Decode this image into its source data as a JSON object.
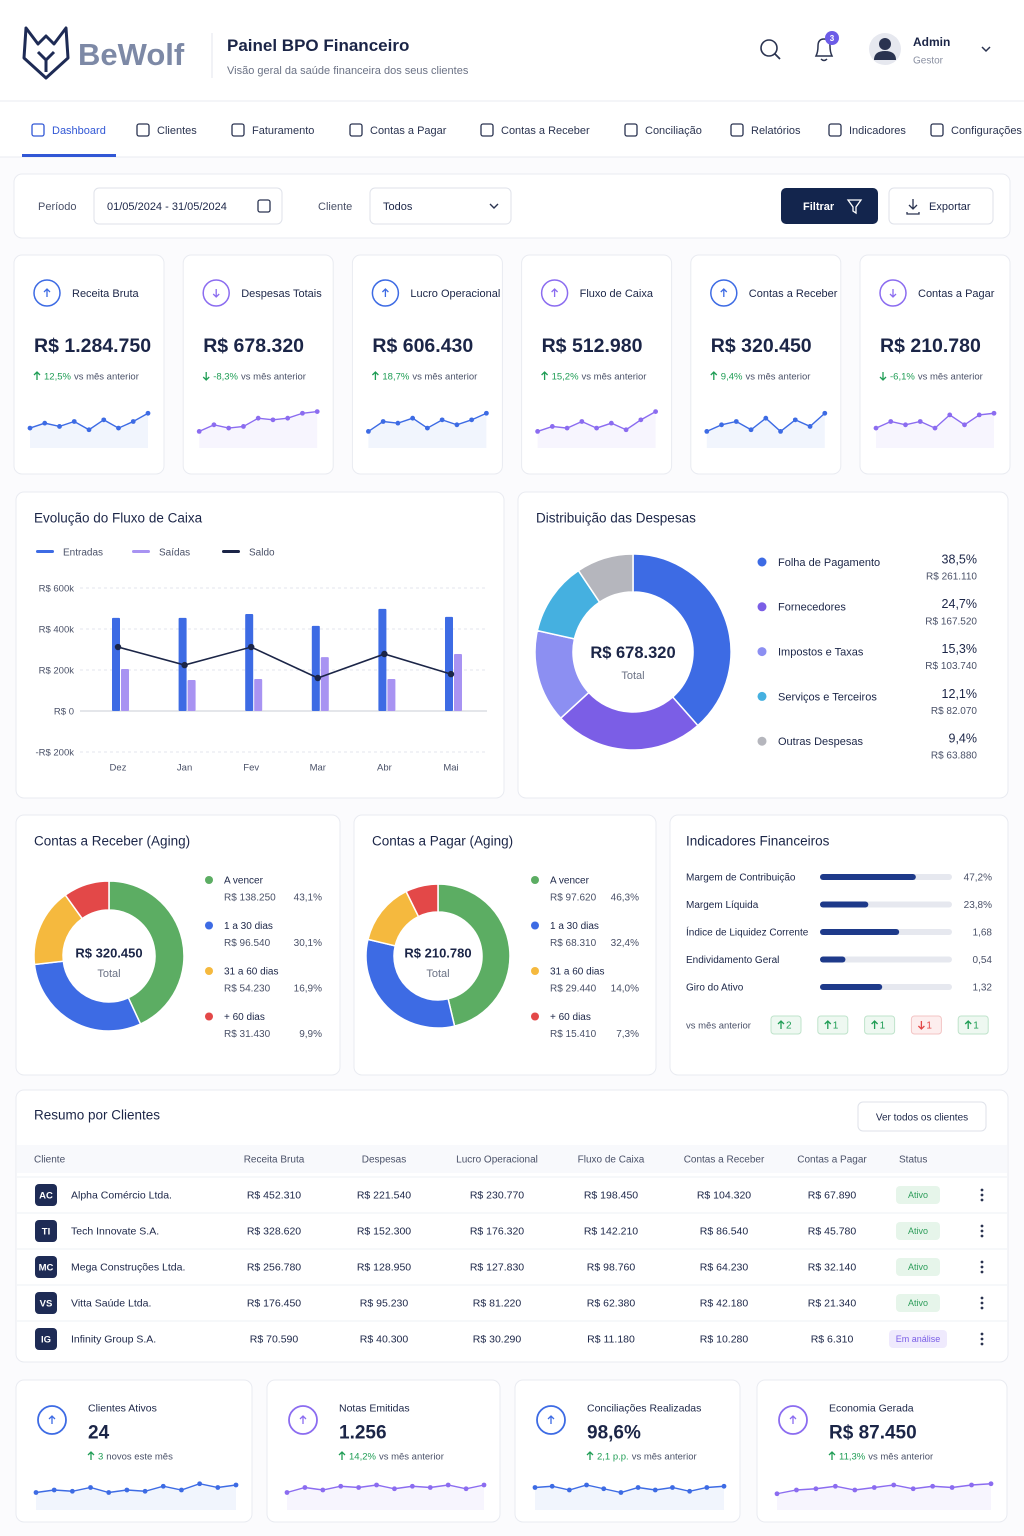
{
  "brand": "BeWolf",
  "header": {
    "title": "Painel BPO Financeiro",
    "subtitle": "Visão geral da saúde financeira dos seus clientes",
    "notifications": "3",
    "user": "Admin",
    "role": "Gestor"
  },
  "nav": [
    "Dashboard",
    "Clientes",
    "Faturamento",
    "Contas a Pagar",
    "Contas a Receber",
    "Conciliação",
    "Relatórios",
    "Indicadores",
    "Configurações"
  ],
  "filters": {
    "period_label": "Período",
    "period": "01/05/2024 - 31/05/2024",
    "client_label": "Cliente",
    "client": "Todos",
    "filter": "Filtrar",
    "export": "Exportar"
  },
  "spark_ylim": [
    0,
    10
  ],
  "kpis": [
    {
      "label": "Receita Bruta",
      "value": "R$ 1.284.750",
      "change": "12,5%",
      "compare": "vs mês anterior",
      "trend": "up",
      "color": "#3d6be4",
      "spark": [
        3,
        4.5,
        3.5,
        5,
        2.5,
        5.5,
        3,
        5,
        7.5
      ]
    },
    {
      "label": "Despesas Totais",
      "value": "R$ 678.320",
      "change": "-8,3%",
      "compare": "vs mês anterior",
      "trend": "down",
      "color": "#8b6cf0",
      "spark": [
        2,
        4,
        3,
        3.5,
        6,
        5.5,
        6,
        7.5,
        8
      ]
    },
    {
      "label": "Lucro Operacional",
      "value": "R$ 606.430",
      "change": "18,7%",
      "compare": "vs mês anterior",
      "trend": "up",
      "color": "#3d6be4",
      "spark": [
        2,
        5,
        4.5,
        6,
        3,
        5.5,
        4,
        5.5,
        7.5
      ]
    },
    {
      "label": "Fluxo de Caixa",
      "value": "R$ 512.980",
      "change": "15,2%",
      "compare": "vs mês anterior",
      "trend": "up",
      "color": "#8b6cf0",
      "spark": [
        2,
        3.5,
        3,
        5,
        3,
        4.5,
        2.5,
        5.5,
        8
      ]
    },
    {
      "label": "Contas a Receber",
      "value": "R$ 320.450",
      "change": "9,4%",
      "compare": "vs mês anterior",
      "trend": "up",
      "color": "#3d6be4",
      "spark": [
        2,
        4,
        5,
        2.5,
        6,
        2,
        5.5,
        3.5,
        7.5
      ]
    },
    {
      "label": "Contas a Pagar",
      "value": "R$ 210.780",
      "change": "-6,1%",
      "compare": "vs mês anterior",
      "trend": "down",
      "color": "#8b6cf0",
      "spark": [
        3,
        5,
        4,
        5,
        3,
        7,
        4,
        7,
        7.5
      ]
    }
  ],
  "cashflow": {
    "title": "Evolução do Fluxo de Caixa",
    "categories": [
      "Dez",
      "Jan",
      "Fev",
      "Mar",
      "Abr",
      "Mai"
    ],
    "series": [
      {
        "name": "Entradas",
        "type": "bar",
        "color": "#3d6be4",
        "values": [
          454,
          454,
          473,
          415,
          498,
          459
        ]
      },
      {
        "name": "Saídas",
        "type": "bar",
        "color": "#a893f2",
        "values": [
          205,
          151,
          156,
          263,
          156,
          278
        ]
      },
      {
        "name": "Saldo",
        "type": "line",
        "color": "#1b2547",
        "values": [
          312,
          224,
          312,
          161,
          278,
          180
        ]
      }
    ],
    "ylim": [
      -200,
      600
    ],
    "yticks": [
      {
        "value": 600,
        "label": "R$ 600k"
      },
      {
        "value": 400,
        "label": "R$ 400k"
      },
      {
        "value": 200,
        "label": "R$ 200k"
      },
      {
        "value": 0,
        "label": "R$ 0"
      },
      {
        "value": -200,
        "label": "-R$ 200k"
      }
    ],
    "grid": true
  },
  "expenses": {
    "title": "Distribuição das Despesas",
    "total": "R$ 678.320",
    "total_label": "Total",
    "names": [
      "Folha de Pagamento",
      "Fornecedores",
      "Impostos e Taxas",
      "Serviços e Terceiros",
      "Outras Despesas"
    ],
    "values": [
      38.5,
      24.7,
      15.3,
      12.1,
      9.4
    ],
    "value_labels": [
      "38,5%",
      "24,7%",
      "15,3%",
      "12,1%",
      "9,4%"
    ],
    "amounts": [
      "R$ 261.110",
      "R$ 167.520",
      "R$ 103.740",
      "R$ 82.070",
      "R$ 63.880"
    ],
    "colors": [
      "#3d6be4",
      "#7b5ee6",
      "#8c8ff2",
      "#45b0e0",
      "#b5b6bd"
    ]
  },
  "receivables": {
    "title": "Contas a Receber (Aging)",
    "total": "R$ 320.450",
    "total_label": "Total",
    "names": [
      "A vencer",
      "1 a 30 dias",
      "31 a 60 dias",
      "+ 60 dias"
    ],
    "values": [
      43.1,
      30.1,
      16.9,
      9.9
    ],
    "value_labels": [
      "43,1%",
      "30,1%",
      "16,9%",
      "9,9%"
    ],
    "amounts": [
      "R$ 138.250",
      "R$ 96.540",
      "R$ 54.230",
      "R$ 31.430"
    ],
    "colors": [
      "#5cad63",
      "#3d6be4",
      "#f5b93e",
      "#e34848"
    ]
  },
  "payables": {
    "title": "Contas a Pagar (Aging)",
    "total": "R$ 210.780",
    "total_label": "Total",
    "names": [
      "A vencer",
      "1 a 30 dias",
      "31 a 60 dias",
      "+ 60 dias"
    ],
    "values": [
      46.3,
      32.4,
      14.0,
      7.3
    ],
    "value_labels": [
      "46,3%",
      "32,4%",
      "14,0%",
      "7,3%"
    ],
    "amounts": [
      "R$ 97.620",
      "R$ 68.310",
      "R$ 29.440",
      "R$ 15.410"
    ],
    "colors": [
      "#5cad63",
      "#3d6be4",
      "#f5b93e",
      "#e34848"
    ]
  },
  "indicators": {
    "title": "Indicadores Financeiros",
    "compare": "vs mês anterior",
    "items": [
      {
        "name": "Margem de Contribuição",
        "value": 47.2,
        "value_label": "47,2%",
        "xlim": [
          0,
          65
        ],
        "change": 2,
        "trend": "up"
      },
      {
        "name": "Margem Líquida",
        "value": 23.8,
        "value_label": "23,8%",
        "xlim": [
          0,
          65
        ],
        "change": 1,
        "trend": "up"
      },
      {
        "name": "Índice de Liquidez Corrente",
        "value": 1.68,
        "value_label": "1,68",
        "xlim": [
          0,
          2.8
        ],
        "change": 1,
        "trend": "up"
      },
      {
        "name": "Endividamento Geral",
        "value": 0.54,
        "value_label": "0,54",
        "xlim": [
          0,
          2.8
        ],
        "change": 1,
        "trend": "down"
      },
      {
        "name": "Giro do Ativo",
        "value": 1.32,
        "value_label": "1,32",
        "xlim": [
          0,
          2.8
        ],
        "change": 1,
        "trend": "up"
      }
    ]
  },
  "clients": {
    "title": "Resumo por Clientes",
    "button": "Ver todos os clientes",
    "columns": [
      "Cliente",
      "Receita Bruta",
      "Despesas",
      "Lucro Operacional",
      "Fluxo de Caixa",
      "Contas a Receber",
      "Contas a Pagar",
      "Status"
    ],
    "rows": [
      {
        "initials": "AC",
        "name": "Alpha Comércio Ltda.",
        "cells": [
          "R$ 452.310",
          "R$ 221.540",
          "R$ 230.770",
          "R$ 198.450",
          "R$ 104.320",
          "R$ 67.890"
        ],
        "status": "Ativo",
        "tone": "active"
      },
      {
        "initials": "TI",
        "name": "Tech Innovate S.A.",
        "cells": [
          "R$ 328.620",
          "R$ 152.300",
          "R$ 176.320",
          "R$ 142.210",
          "R$ 86.540",
          "R$ 45.780"
        ],
        "status": "Ativo",
        "tone": "active"
      },
      {
        "initials": "MC",
        "name": "Mega Construções Ltda.",
        "cells": [
          "R$ 256.780",
          "R$ 128.950",
          "R$ 127.830",
          "R$ 98.760",
          "R$ 64.230",
          "R$ 32.140"
        ],
        "status": "Ativo",
        "tone": "active"
      },
      {
        "initials": "VS",
        "name": "Vitta Saúde Ltda.",
        "cells": [
          "R$ 176.450",
          "R$ 95.230",
          "R$ 81.220",
          "R$ 62.380",
          "R$ 42.180",
          "R$ 21.340"
        ],
        "status": "Ativo",
        "tone": "active"
      },
      {
        "initials": "IG",
        "name": "Infinity Group S.A.",
        "cells": [
          "R$ 70.590",
          "R$ 40.300",
          "R$ 30.290",
          "R$ 11.180",
          "R$ 10.280",
          "R$ 6.310"
        ],
        "status": "Em análise",
        "tone": "review"
      }
    ]
  },
  "stats": [
    {
      "label": "Clientes Ativos",
      "value": "24",
      "change": "3",
      "note": "novos este mês",
      "trend": "up",
      "color": "#3d6be4",
      "spark": [
        3,
        4,
        3.5,
        5,
        3,
        4,
        3.5,
        5.5,
        4,
        6.5,
        5,
        6
      ]
    },
    {
      "label": "Notas Emitidas",
      "value": "1.256",
      "change": "14,2%",
      "note": "vs mês anterior",
      "trend": "up",
      "color": "#8b6cf0",
      "spark": [
        3,
        5,
        4,
        5.5,
        5,
        6,
        4.5,
        5.5,
        5,
        6,
        4.5,
        6
      ]
    },
    {
      "label": "Conciliações Realizadas",
      "value": "98,6%",
      "change": "2,1 p.p.",
      "note": "vs mês anterior",
      "trend": "up",
      "color": "#3d6be4",
      "spark": [
        5,
        5.5,
        4,
        6,
        4.5,
        3,
        5,
        4,
        5,
        3.5,
        5,
        5.5
      ]
    },
    {
      "label": "Economia Gerada",
      "value": "R$ 87.450",
      "change": "11,3%",
      "note": "vs mês anterior",
      "trend": "up",
      "color": "#8b6cf0",
      "spark": [
        2.5,
        4,
        4.5,
        5.5,
        4,
        5,
        6,
        4.5,
        5.5,
        5,
        6,
        6.5
      ]
    }
  ]
}
